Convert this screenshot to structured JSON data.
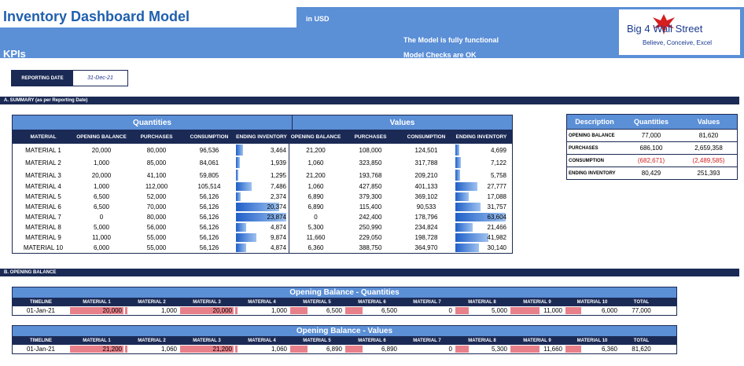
{
  "header": {
    "title": "Inventory Dashboard Model",
    "currency": "in USD",
    "subtitle": "KPIs",
    "message1": "The Model is fully functional",
    "message2": "Model Checks are OK",
    "logo_name": "Big 4 Wall Street",
    "logo_tagline": "Believe, Conceive, Excel"
  },
  "reporting": {
    "label": "REPORTING DATE",
    "value": "31-Dec-21"
  },
  "sections": {
    "summary": "A.  SUMMARY (as per Reporting Date)",
    "opening": "B.  OPENING BALANCE"
  },
  "summary": {
    "group_quantities": "Quantities",
    "group_values": "Values",
    "columns": [
      "MATERIAL",
      "OPENING BALANCE",
      "PURCHASES",
      "CONSUMPTION",
      "ENDING INVENTORY",
      "OPENING BALANCE",
      "PURCHASES",
      "CONSUMPTION",
      "ENDING INVENTORY"
    ],
    "rows": [
      {
        "material": "MATERIAL 1",
        "q_open": "20,000",
        "q_pur": "80,000",
        "q_con": "96,536",
        "q_end": "3,464",
        "q_end_frac": 0.145,
        "v_open": "21,200",
        "v_pur": "108,000",
        "v_con": "124,501",
        "v_end": "4,699",
        "v_end_frac": 0.074
      },
      {
        "material": "MATERIAL 2",
        "q_open": "1,000",
        "q_pur": "85,000",
        "q_con": "84,061",
        "q_end": "1,939",
        "q_end_frac": 0.081,
        "v_open": "1,060",
        "v_pur": "323,850",
        "v_con": "317,788",
        "v_end": "7,122",
        "v_end_frac": 0.112
      },
      {
        "material": "MATERIAL 3",
        "q_open": "20,000",
        "q_pur": "41,100",
        "q_con": "59,805",
        "q_end": "1,295",
        "q_end_frac": 0.054,
        "v_open": "21,200",
        "v_pur": "193,768",
        "v_con": "209,210",
        "v_end": "5,758",
        "v_end_frac": 0.091
      },
      {
        "material": "MATERIAL 4",
        "q_open": "1,000",
        "q_pur": "112,000",
        "q_con": "105,514",
        "q_end": "7,486",
        "q_end_frac": 0.313,
        "v_open": "1,060",
        "v_pur": "427,850",
        "v_con": "401,133",
        "v_end": "27,777",
        "v_end_frac": 0.437
      },
      {
        "material": "MATERIAL 5",
        "q_open": "6,500",
        "q_pur": "52,000",
        "q_con": "56,126",
        "q_end": "2,374",
        "q_end_frac": 0.099,
        "v_open": "6,890",
        "v_pur": "379,300",
        "v_con": "369,102",
        "v_end": "17,088",
        "v_end_frac": 0.269
      },
      {
        "material": "MATERIAL 6",
        "q_open": "6,500",
        "q_pur": "70,000",
        "q_con": "56,126",
        "q_end": "20,374",
        "q_end_frac": 0.853,
        "v_open": "6,890",
        "v_pur": "115,400",
        "v_con": "90,533",
        "v_end": "31,757",
        "v_end_frac": 0.499
      },
      {
        "material": "MATERIAL 7",
        "q_open": "0",
        "q_pur": "80,000",
        "q_con": "56,126",
        "q_end": "23,874",
        "q_end_frac": 1.0,
        "v_open": "0",
        "v_pur": "242,400",
        "v_con": "178,796",
        "v_end": "63,604",
        "v_end_frac": 1.0
      },
      {
        "material": "MATERIAL 8",
        "q_open": "5,000",
        "q_pur": "56,000",
        "q_con": "56,126",
        "q_end": "4,874",
        "q_end_frac": 0.204,
        "v_open": "5,300",
        "v_pur": "250,990",
        "v_con": "234,824",
        "v_end": "21,466",
        "v_end_frac": 0.337
      },
      {
        "material": "MATERIAL 9",
        "q_open": "11,000",
        "q_pur": "55,000",
        "q_con": "56,126",
        "q_end": "9,874",
        "q_end_frac": 0.414,
        "v_open": "11,660",
        "v_pur": "229,050",
        "v_con": "198,728",
        "v_end": "41,982",
        "v_end_frac": 0.66
      },
      {
        "material": "MATERIAL 10",
        "q_open": "6,000",
        "q_pur": "55,000",
        "q_con": "56,126",
        "q_end": "4,874",
        "q_end_frac": 0.204,
        "v_open": "6,360",
        "v_pur": "388,750",
        "v_con": "364,970",
        "v_end": "30,140",
        "v_end_frac": 0.474
      }
    ]
  },
  "description": {
    "headers": [
      "Description",
      "Quantities",
      "Values"
    ],
    "rows": [
      {
        "label": "OPENING BALANCE",
        "q": "77,000",
        "v": "81,620",
        "neg": false
      },
      {
        "label": "PURCHASES",
        "q": "686,100",
        "v": "2,659,358",
        "neg": false
      },
      {
        "label": "CONSUMPTION",
        "q": "(682,671)",
        "v": "(2,489,585)",
        "neg": true
      },
      {
        "label": "ENDING INVENTORY",
        "q": "80,429",
        "v": "251,393",
        "neg": false
      }
    ]
  },
  "opening_quantities": {
    "title": "Opening Balance - Quantities",
    "columns": [
      "TIMELINE",
      "MATERIAL 1",
      "MATERIAL 2",
      "MATERIAL 3",
      "MATERIAL 4",
      "MATERIAL 5",
      "MATERIAL 6",
      "MATERIAL 7",
      "MATERIAL 8",
      "MATERIAL 9",
      "MATERIAL 10",
      "TOTAL"
    ],
    "row": {
      "timeline": "01-Jan-21",
      "values": [
        "20,000",
        "1,000",
        "20,000",
        "1,000",
        "6,500",
        "6,500",
        "0",
        "5,000",
        "11,000",
        "6,000"
      ],
      "fracs": [
        1.0,
        0.05,
        1.0,
        0.05,
        0.325,
        0.325,
        0.0,
        0.25,
        0.55,
        0.3
      ],
      "total": "77,000"
    }
  },
  "opening_values": {
    "title": "Opening Balance - Values",
    "columns": [
      "TIMELINE",
      "MATERIAL 1",
      "MATERIAL 2",
      "MATERIAL 3",
      "MATERIAL 4",
      "MATERIAL 5",
      "MATERIAL 6",
      "MATERIAL 7",
      "MATERIAL 8",
      "MATERIAL 9",
      "MATERIAL 10",
      "TOTAL"
    ],
    "row": {
      "timeline": "01-Jan-21",
      "values": [
        "21,200",
        "1,060",
        "21,200",
        "1,060",
        "6,890",
        "6,890",
        "0",
        "5,300",
        "11,660",
        "6,360"
      ],
      "fracs": [
        1.0,
        0.05,
        1.0,
        0.05,
        0.325,
        0.325,
        0.0,
        0.25,
        0.55,
        0.3
      ],
      "total": "81,620"
    }
  },
  "colors": {
    "header_blue": "#5b8fd6",
    "navy": "#1b2a55",
    "title_blue": "#1f5fae",
    "negative_red": "#d21f1f",
    "bar_red": "#e8808a"
  }
}
